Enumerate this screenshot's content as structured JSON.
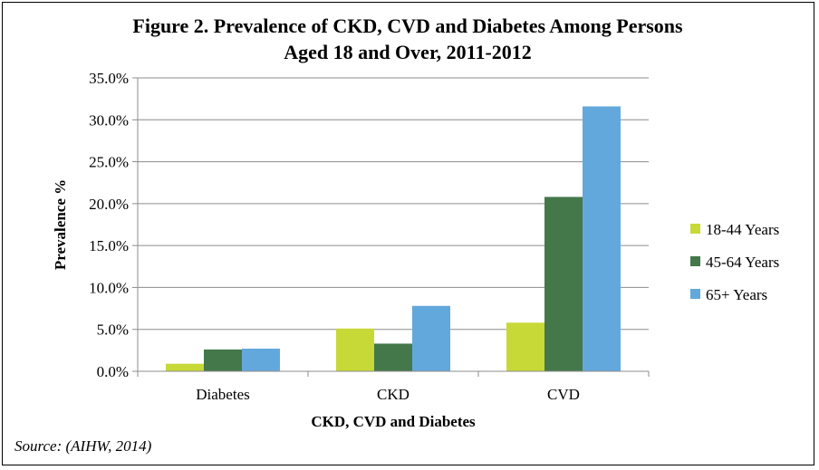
{
  "chart_data": {
    "type": "bar",
    "title_line1": "Figure 2. Prevalence of CKD, CVD and Diabetes Among Persons",
    "title_line2": "Aged 18 and Over, 2011-2012",
    "xlabel": "CKD, CVD and Diabetes",
    "ylabel": "Prevalence %",
    "ylim": [
      0,
      35
    ],
    "yticks": [
      "0.0%",
      "5.0%",
      "10.0%",
      "15.0%",
      "20.0%",
      "25.0%",
      "30.0%",
      "35.0%"
    ],
    "categories": [
      "Diabetes",
      "CKD",
      "CVD"
    ],
    "series": [
      {
        "name": "18-44 Years",
        "color": "#c7d936",
        "values": [
          0.9,
          5.1,
          5.8
        ]
      },
      {
        "name": "45-64 Years",
        "color": "#44784a",
        "values": [
          2.6,
          3.3,
          20.8
        ]
      },
      {
        "name": "65+ Years",
        "color": "#63a8dc",
        "values": [
          2.7,
          7.8,
          31.6
        ]
      }
    ],
    "legend_position": "right",
    "grid": true
  },
  "source": "Source: (AIHW, 2014)"
}
